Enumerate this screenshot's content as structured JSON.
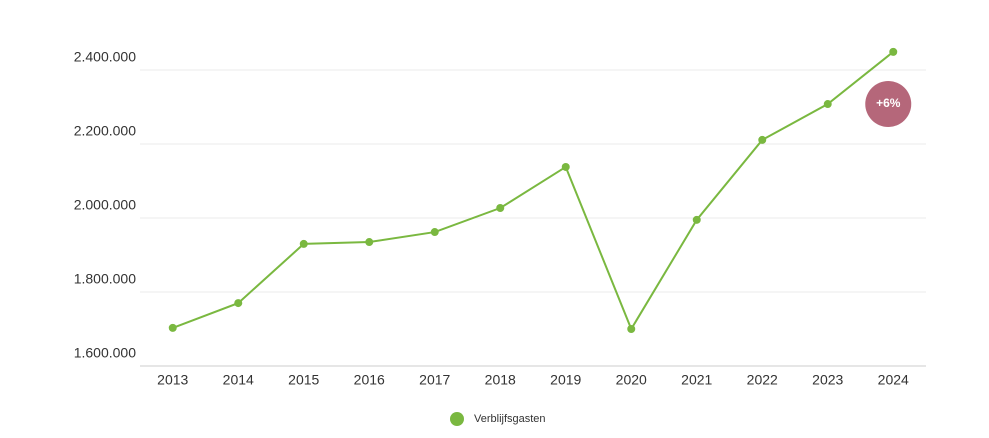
{
  "chart_data": {
    "type": "line",
    "categories": [
      "2013",
      "2014",
      "2015",
      "2016",
      "2017",
      "2018",
      "2019",
      "2020",
      "2021",
      "2022",
      "2023",
      "2024"
    ],
    "series": [
      {
        "name": "Verblijfsgasten",
        "color": "#7ab840",
        "values": [
          1703000,
          1770000,
          1930000,
          1935000,
          1962000,
          2027000,
          2138000,
          1700000,
          1995000,
          2211000,
          2308000,
          2449000
        ]
      }
    ],
    "ylim": [
      1600000,
      2500000
    ],
    "yticks": [
      {
        "value": 1600000,
        "label": "1.600.000"
      },
      {
        "value": 1800000,
        "label": "1.800.000"
      },
      {
        "value": 2000000,
        "label": "2.000.000"
      },
      {
        "value": 2200000,
        "label": "2.200.000"
      },
      {
        "value": 2400000,
        "label": "2.400.000"
      }
    ],
    "grid": true,
    "annotation": {
      "text": "+6%",
      "color": "#b5677a"
    },
    "legend": "bottom"
  }
}
